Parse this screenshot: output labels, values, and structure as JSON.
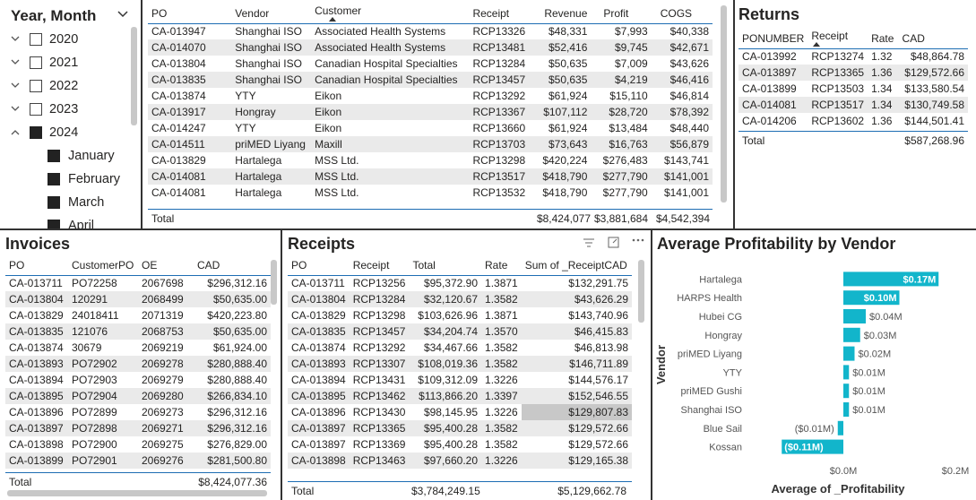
{
  "slicer": {
    "title": "Year, Month",
    "years": [
      {
        "label": "2020",
        "expanded": false,
        "checked": false
      },
      {
        "label": "2021",
        "expanded": false,
        "checked": false
      },
      {
        "label": "2022",
        "expanded": false,
        "checked": false
      },
      {
        "label": "2023",
        "expanded": false,
        "checked": false
      },
      {
        "label": "2024",
        "expanded": true,
        "checked": true
      }
    ],
    "months": [
      "January",
      "February",
      "March",
      "April"
    ]
  },
  "po_table": {
    "columns": [
      "PO",
      "Vendor",
      "Customer",
      "Receipt",
      "Revenue",
      "Profit",
      "COGS"
    ],
    "rows": [
      [
        "CA-013947",
        "Shanghai ISO",
        "Associated Health Systems",
        "RCP13326",
        "$48,331",
        "$7,993",
        "$40,338"
      ],
      [
        "CA-014070",
        "Shanghai ISO",
        "Associated Health Systems",
        "RCP13481",
        "$52,416",
        "$9,745",
        "$42,671"
      ],
      [
        "CA-013804",
        "Shanghai ISO",
        "Canadian Hospital Specialties",
        "RCP13284",
        "$50,635",
        "$7,009",
        "$43,626"
      ],
      [
        "CA-013835",
        "Shanghai ISO",
        "Canadian Hospital Specialties",
        "RCP13457",
        "$50,635",
        "$4,219",
        "$46,416"
      ],
      [
        "CA-013874",
        "YTY",
        "Eikon",
        "RCP13292",
        "$61,924",
        "$15,110",
        "$46,814"
      ],
      [
        "CA-013917",
        "Hongray",
        "Eikon",
        "RCP13367",
        "$107,112",
        "$28,720",
        "$78,392"
      ],
      [
        "CA-014247",
        "YTY",
        "Eikon",
        "RCP13660",
        "$61,924",
        "$13,484",
        "$48,440"
      ],
      [
        "CA-014511",
        "priMED Liyang",
        "Maxill",
        "RCP13703",
        "$73,643",
        "$16,763",
        "$56,879"
      ],
      [
        "CA-013829",
        "Hartalega",
        "MSS Ltd.",
        "RCP13298",
        "$420,224",
        "$276,483",
        "$143,741"
      ],
      [
        "CA-014081",
        "Hartalega",
        "MSS Ltd.",
        "RCP13517",
        "$418,790",
        "$277,790",
        "$141,001"
      ],
      [
        "CA-014081",
        "Hartalega",
        "MSS Ltd.",
        "RCP13532",
        "$418,790",
        "$277,790",
        "$141,001"
      ]
    ],
    "total": {
      "label": "Total",
      "revenue": "$8,424,077",
      "profit": "$3,881,684",
      "cogs": "$4,542,394"
    }
  },
  "returns": {
    "title": "Returns",
    "columns": [
      "PONUMBER",
      "Receipt",
      "Rate",
      "CAD"
    ],
    "rows": [
      [
        "CA-013992",
        "RCP13274",
        "1.32",
        "$48,864.78"
      ],
      [
        "CA-013897",
        "RCP13365",
        "1.36",
        "$129,572.66"
      ],
      [
        "CA-013899",
        "RCP13503",
        "1.34",
        "$133,580.54"
      ],
      [
        "CA-014081",
        "RCP13517",
        "1.34",
        "$130,749.58"
      ],
      [
        "CA-014206",
        "RCP13602",
        "1.36",
        "$144,501.41"
      ]
    ],
    "total": {
      "label": "Total",
      "cad": "$587,268.96"
    }
  },
  "invoices": {
    "title": "Invoices",
    "columns": [
      "PO",
      "CustomerPO",
      "OE",
      "CAD"
    ],
    "rows": [
      [
        "CA-013711",
        "PO72258",
        "2067698",
        "$296,312.16"
      ],
      [
        "CA-013804",
        "120291",
        "2068499",
        "$50,635.00"
      ],
      [
        "CA-013829",
        "24018411",
        "2071319",
        "$420,223.80"
      ],
      [
        "CA-013835",
        "121076",
        "2068753",
        "$50,635.00"
      ],
      [
        "CA-013874",
        "30679",
        "2069219",
        "$61,924.00"
      ],
      [
        "CA-013893",
        "PO72902",
        "2069278",
        "$280,888.40"
      ],
      [
        "CA-013894",
        "PO72903",
        "2069279",
        "$280,888.40"
      ],
      [
        "CA-013895",
        "PO72904",
        "2069280",
        "$266,834.10"
      ],
      [
        "CA-013896",
        "PO72899",
        "2069273",
        "$296,312.16"
      ],
      [
        "CA-013897",
        "PO72898",
        "2069271",
        "$296,312.16"
      ],
      [
        "CA-013898",
        "PO72900",
        "2069275",
        "$276,829.00"
      ],
      [
        "CA-013899",
        "PO72901",
        "2069276",
        "$281,500.80"
      ]
    ],
    "total": {
      "label": "Total",
      "cad": "$8,424,077.36"
    }
  },
  "receipts": {
    "title": "Receipts",
    "columns": [
      "PO",
      "Receipt",
      "Total",
      "Rate",
      "Sum of _ReceiptCAD"
    ],
    "rows": [
      [
        "CA-013711",
        "RCP13256",
        "$95,372.90",
        "1.3871",
        "$132,291.75"
      ],
      [
        "CA-013804",
        "RCP13284",
        "$32,120.67",
        "1.3582",
        "$43,626.29"
      ],
      [
        "CA-013829",
        "RCP13298",
        "$103,626.96",
        "1.3871",
        "$143,740.96"
      ],
      [
        "CA-013835",
        "RCP13457",
        "$34,204.74",
        "1.3570",
        "$46,415.83"
      ],
      [
        "CA-013874",
        "RCP13292",
        "$34,467.66",
        "1.3582",
        "$46,813.98"
      ],
      [
        "CA-013893",
        "RCP13307",
        "$108,019.36",
        "1.3582",
        "$146,711.89"
      ],
      [
        "CA-013894",
        "RCP13431",
        "$109,312.09",
        "1.3226",
        "$144,576.17"
      ],
      [
        "CA-013895",
        "RCP13462",
        "$113,866.20",
        "1.3397",
        "$152,546.55"
      ],
      [
        "CA-013896",
        "RCP13430",
        "$98,145.95",
        "1.3226",
        "$129,807.83"
      ],
      [
        "CA-013897",
        "RCP13365",
        "$95,400.28",
        "1.3582",
        "$129,572.66"
      ],
      [
        "CA-013897",
        "RCP13369",
        "$95,400.28",
        "1.3582",
        "$129,572.66"
      ],
      [
        "CA-013898",
        "RCP13463",
        "$97,660.20",
        "1.3226",
        "$129,165.38"
      ]
    ],
    "total": {
      "label": "Total",
      "total": "$3,784,249.15",
      "cad": "$5,129,662.78"
    }
  },
  "chart_data": {
    "type": "bar",
    "orientation": "horizontal",
    "title": "Average Profitability by Vendor",
    "xlabel": "Average of _Profitability",
    "ylabel": "Vendor",
    "categories": [
      "Hartalega",
      "HARPS Health",
      "Hubei CG",
      "Hongray",
      "priMED Liyang",
      "YTY",
      "priMED Gushi",
      "Shanghai ISO",
      "Blue Sail",
      "Kossan"
    ],
    "values": [
      0.17,
      0.1,
      0.04,
      0.03,
      0.02,
      0.01,
      0.01,
      0.01,
      -0.01,
      -0.11
    ],
    "data_labels": [
      "$0.17M",
      "$0.10M",
      "$0.04M",
      "$0.03M",
      "$0.02M",
      "$0.01M",
      "$0.01M",
      "$0.01M",
      "($0.01M)",
      "($0.11M)"
    ],
    "xticks": [
      "$0.0M",
      "$0.2M"
    ],
    "xtick_values": [
      0,
      0.2
    ],
    "xlim": [
      -0.12,
      0.2
    ],
    "bar_color": "#12b5cb",
    "grid": false
  }
}
